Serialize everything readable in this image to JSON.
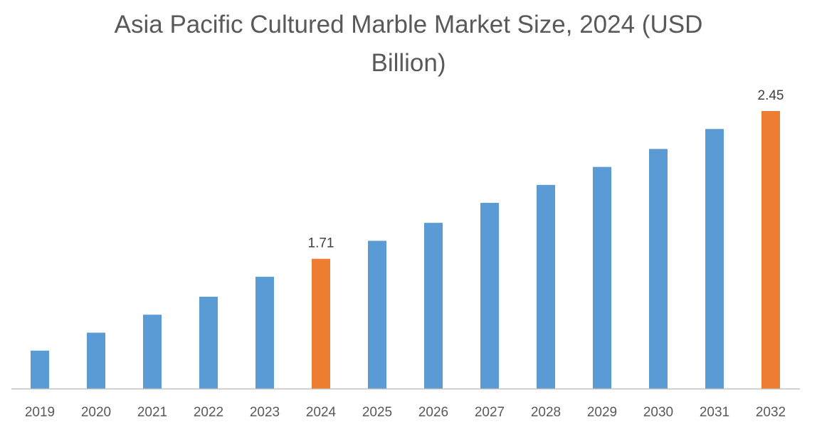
{
  "chart_data": {
    "type": "bar",
    "title_line1": "Asia Pacific Cultured Marble Market Size, 2024 (USD",
    "title_line2": "Billion)",
    "categories": [
      "2019",
      "2020",
      "2021",
      "2022",
      "2023",
      "2024",
      "2025",
      "2026",
      "2027",
      "2028",
      "2029",
      "2030",
      "2031",
      "2032"
    ],
    "values": [
      1.25,
      1.34,
      1.43,
      1.52,
      1.62,
      1.71,
      1.8,
      1.89,
      1.99,
      2.08,
      2.17,
      2.26,
      2.36,
      2.45
    ],
    "data_labels": {
      "5": "1.71",
      "13": "2.45"
    },
    "highlight_indices": [
      5,
      13
    ],
    "ylim": [
      1.06,
      2.45
    ],
    "grid": false,
    "legend": "none",
    "xlabel": "",
    "ylabel": "",
    "colors": {
      "default": "#5B9BD5",
      "highlight": "#ED7D31",
      "axis": "#BFBFBF",
      "text": "#595959"
    }
  }
}
